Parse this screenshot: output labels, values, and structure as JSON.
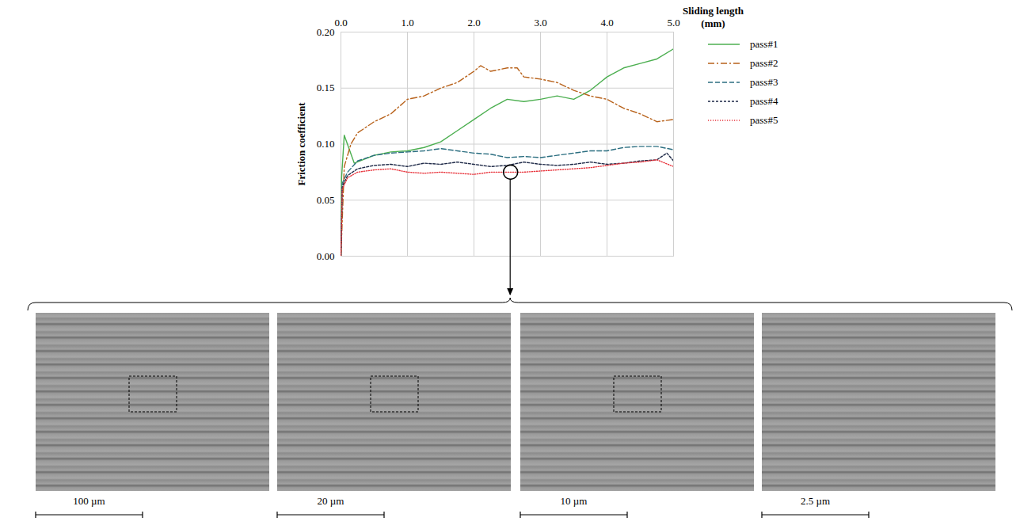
{
  "chart_data": {
    "type": "line",
    "xlabel": "Sliding length (mm)",
    "ylabel": "Friction coefficient",
    "xlim": [
      0,
      5
    ],
    "xticks": [
      0,
      1,
      2,
      3,
      4,
      5
    ],
    "ylim": [
      0,
      0.2
    ],
    "yticks": [
      0,
      0.05,
      0.1,
      0.15,
      0.2
    ],
    "grid": true,
    "legend": "right",
    "series": [
      {
        "name": "pass#1",
        "color": "#4caf50",
        "line_style": "solid",
        "x": [
          0,
          0.01,
          0.05,
          0.2,
          0.5,
          0.75,
          1.0,
          1.25,
          1.5,
          1.75,
          2.0,
          2.25,
          2.5,
          2.75,
          3.0,
          3.25,
          3.5,
          3.75,
          4.0,
          4.25,
          4.5,
          4.75,
          5.0
        ],
        "values": [
          0,
          0.07,
          0.108,
          0.083,
          0.09,
          0.093,
          0.094,
          0.097,
          0.102,
          0.112,
          0.122,
          0.132,
          0.14,
          0.138,
          0.14,
          0.143,
          0.14,
          0.148,
          0.16,
          0.168,
          0.172,
          0.176,
          0.185
        ]
      },
      {
        "name": "pass#2",
        "color": "#b8621b",
        "line_style": "dash_dot",
        "x": [
          0,
          0.05,
          0.15,
          0.25,
          0.5,
          0.75,
          1.0,
          1.25,
          1.5,
          1.75,
          2.0,
          2.1,
          2.25,
          2.5,
          2.65,
          2.75,
          3.0,
          3.25,
          3.5,
          3.75,
          4.0,
          4.25,
          4.5,
          4.75,
          5.0
        ],
        "values": [
          0,
          0.08,
          0.1,
          0.11,
          0.12,
          0.127,
          0.14,
          0.143,
          0.15,
          0.155,
          0.165,
          0.17,
          0.165,
          0.168,
          0.168,
          0.16,
          0.158,
          0.155,
          0.148,
          0.143,
          0.14,
          0.132,
          0.127,
          0.12,
          0.122
        ]
      },
      {
        "name": "pass#3",
        "color": "#2b6e80",
        "line_style": "dash",
        "x": [
          0,
          0.02,
          0.1,
          0.25,
          0.5,
          0.75,
          1.0,
          1.25,
          1.5,
          1.75,
          2.0,
          2.25,
          2.5,
          2.75,
          3.0,
          3.25,
          3.5,
          3.75,
          4.0,
          4.25,
          4.5,
          4.75,
          5.0
        ],
        "values": [
          0,
          0.065,
          0.075,
          0.085,
          0.09,
          0.092,
          0.093,
          0.094,
          0.096,
          0.094,
          0.092,
          0.091,
          0.088,
          0.089,
          0.088,
          0.09,
          0.092,
          0.094,
          0.094,
          0.097,
          0.098,
          0.098,
          0.095
        ]
      },
      {
        "name": "pass#4",
        "color": "#1f2a48",
        "line_style": "short_dash",
        "x": [
          0,
          0.02,
          0.1,
          0.25,
          0.5,
          0.75,
          1.0,
          1.25,
          1.5,
          1.75,
          2.0,
          2.25,
          2.5,
          2.75,
          3.0,
          3.25,
          3.5,
          3.75,
          4.0,
          4.25,
          4.5,
          4.75,
          4.9,
          5.0
        ],
        "values": [
          0,
          0.062,
          0.072,
          0.078,
          0.081,
          0.082,
          0.08,
          0.083,
          0.082,
          0.084,
          0.082,
          0.08,
          0.081,
          0.084,
          0.082,
          0.081,
          0.082,
          0.084,
          0.082,
          0.083,
          0.085,
          0.086,
          0.092,
          0.085
        ]
      },
      {
        "name": "pass#5",
        "color": "#e8343c",
        "line_style": "dot",
        "x": [
          0,
          0.02,
          0.1,
          0.25,
          0.5,
          0.75,
          1.0,
          1.25,
          1.5,
          1.75,
          2.0,
          2.25,
          2.5,
          2.75,
          3.0,
          3.25,
          3.5,
          3.75,
          4.0,
          4.25,
          4.5,
          4.75,
          5.0
        ],
        "values": [
          0,
          0.06,
          0.07,
          0.075,
          0.077,
          0.078,
          0.075,
          0.074,
          0.075,
          0.074,
          0.073,
          0.075,
          0.075,
          0.075,
          0.076,
          0.077,
          0.078,
          0.079,
          0.081,
          0.083,
          0.084,
          0.086,
          0.08
        ]
      }
    ],
    "annotations": [
      {
        "x": 2.55,
        "y": 0.075,
        "marker": "circle"
      }
    ]
  },
  "micrographs": [
    {
      "scale_bar": "100 µm"
    },
    {
      "scale_bar": "20 µm"
    },
    {
      "scale_bar": "10 µm"
    },
    {
      "scale_bar": "2.5 µm"
    }
  ]
}
